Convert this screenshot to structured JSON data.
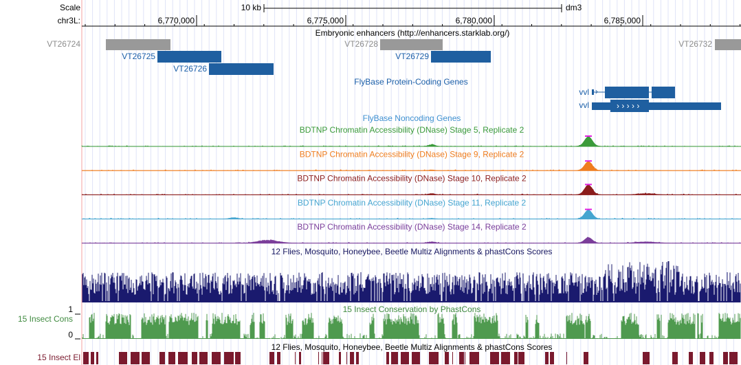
{
  "header": {
    "scale_label": "Scale",
    "scale_bar": "10 kb",
    "assembly": "dm3",
    "chrom": "chr3L:",
    "positions": [
      "6,770,000",
      "6,775,000",
      "6,780,000",
      "6,785,000"
    ]
  },
  "tracks": {
    "enhancers": {
      "title": "Embryonic enhancers (http://enhancers.starklab.org/)",
      "items": [
        "VT26724",
        "VT26725",
        "VT26726",
        "VT26728",
        "VT26729",
        "VT26732"
      ]
    },
    "protein_coding": {
      "title": "FlyBase Protein-Coding Genes",
      "genes": [
        "vvl",
        "vvl"
      ]
    },
    "noncoding": {
      "title": "FlyBase Noncoding Genes"
    },
    "dnase": [
      {
        "title": "BDTNP Chromatin Accessibility (DNase) Stage 5, Replicate 2"
      },
      {
        "title": "BDTNP Chromatin Accessibility (DNase) Stage 9, Replicate 2"
      },
      {
        "title": "BDTNP Chromatin Accessibility (DNase) Stage 10, Replicate 2"
      },
      {
        "title": "BDTNP Chromatin Accessibility (DNase) Stage 11, Replicate 2"
      },
      {
        "title": "BDTNP Chromatin Accessibility (DNase) Stage 14, Replicate 2"
      }
    ],
    "multiz": {
      "title": "12 Flies, Mosquito, Honeybee, Beetle Multiz Alignments & phastCons Scores"
    },
    "phastcons": {
      "title": "15 Insect Conservation by PhastCons",
      "side_label": "15 Insect Cons",
      "ymax": 1,
      "ymin": 0
    },
    "elements": {
      "title": "12 Flies, Mosquito, Honeybee, Beetle Multiz Alignments & phastCons Scores",
      "side_label": "15 Insect El"
    }
  }
}
